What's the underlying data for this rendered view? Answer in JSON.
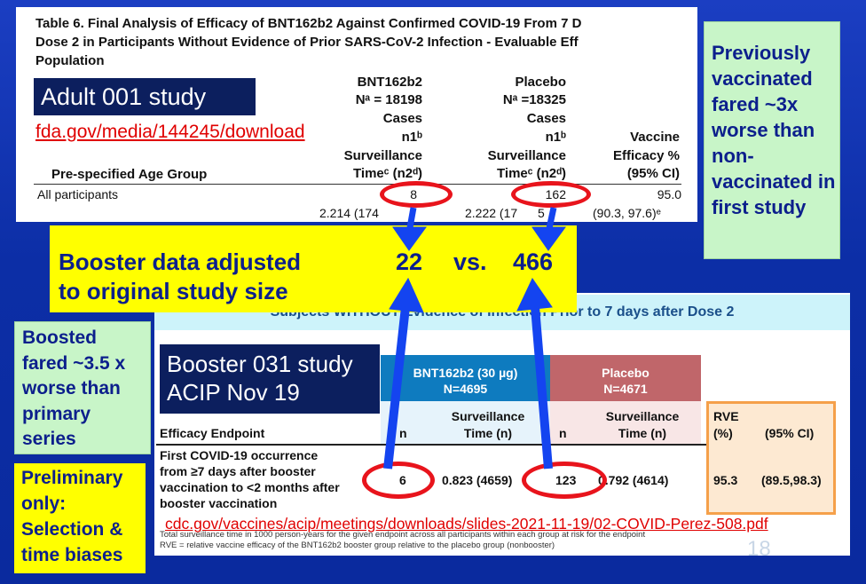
{
  "top_table": {
    "title_line1": "Table 6. Final Analysis of Efficacy of BNT162b2 Against Confirmed COVID-19 From 7 D",
    "title_line2": "Dose 2 in Participants Without Evidence of Prior SARS-CoV-2 Infection - Evaluable Eff",
    "title_line3": "Population",
    "col_bnt_line1": "BNT162b2",
    "col_bnt_line2": "Nᵃ = 18198",
    "col_placebo_line1": "Placebo",
    "col_placebo_line2": "Nᵃ =18325",
    "cases_label": "Cases",
    "n1_label": "n1ᵇ",
    "surv_label": "Surveillance",
    "time_label": "Timeᶜ (n2ᵈ)",
    "ve_line1": "Vaccine",
    "ve_line2": "Efficacy %",
    "ve_line3": "(95% CI)",
    "age_group_header": "Pre-specified Age Group",
    "row_label": "All participants",
    "bnt_cases": "8",
    "placebo_cases": "162",
    "ve_value": "95.0",
    "bnt_time": "2.214 (174",
    "placebo_time": "2.222 (17",
    "placebo_time_tail": "5",
    "ci_value": "(90.3, 97.6)ᵉ"
  },
  "adult_study": {
    "label": "Adult 001 study",
    "link": "fda.gov/media/144245/download"
  },
  "callout_previous": {
    "text": "Previously vaccinated fared ~3x worse than non-vaccinated in first study"
  },
  "booster_adjusted": {
    "line1": "Booster data adjusted",
    "line2": "to original study size",
    "value_vaccine": "22",
    "vs": "vs.",
    "value_placebo": "466"
  },
  "bottom_table": {
    "banner": "Subjects WITHOUT Evidence of Infection Prior to 7 days after Dose 2",
    "bnt_header_line1": "BNT162b2 (30 µg)",
    "bnt_header_line2": "N=4695",
    "placebo_header_line1": "Placebo",
    "placebo_header_line2": "N=4671",
    "col_n": "n",
    "col_surv_line1": "Surveillance",
    "col_surv_line2": "Time (n)",
    "col_rve_line1": "RVE",
    "col_rve_line2": "(%)",
    "col_ci": "(95% CI)",
    "endpoint_header": "Efficacy Endpoint",
    "endpoint_line1": "First COVID-19 occurrence",
    "endpoint_line2": "from ≥7 days after booster",
    "endpoint_line3": "vaccination to <2 months after",
    "endpoint_line4": "booster vaccination",
    "bnt_n": "6",
    "bnt_time": "0.823 (4659)",
    "placebo_n": "123",
    "placebo_time": "0.792 (4614)",
    "rve": "95.3",
    "ci": "(89.5,98.3)",
    "footnote1": "Total surveillance time in 1000 person-years for the given endpoint across all participants within each group at risk for the endpoint",
    "footnote2": "RVE = relative vaccine efficacy of the BNT162b2 booster group relative to the placebo group (nonbooster)",
    "page_number": "18"
  },
  "booster_study": {
    "line1": "Booster 031 study",
    "line2": "ACIP Nov 19"
  },
  "cdc_link": "cdc.gov/vaccines/acip/meetings/downloads/slides-2021-11-19/02-COVID-Perez-508.pdf",
  "callout_boosted": {
    "text": "Boosted fared ~3.5 x worse than primary series"
  },
  "callout_preliminary": {
    "text": "Preliminary only: Selection & time biases"
  },
  "colors": {
    "navy": "#0c1f5e",
    "yellow": "#ffff00",
    "green_callout": "#c8f5c8",
    "red_highlight": "#e8141c",
    "link_red": "#e00000",
    "bnt_blue": "#0e7bbf",
    "placebo_rose": "#c0666a",
    "arrow_blue": "#1444f0"
  }
}
